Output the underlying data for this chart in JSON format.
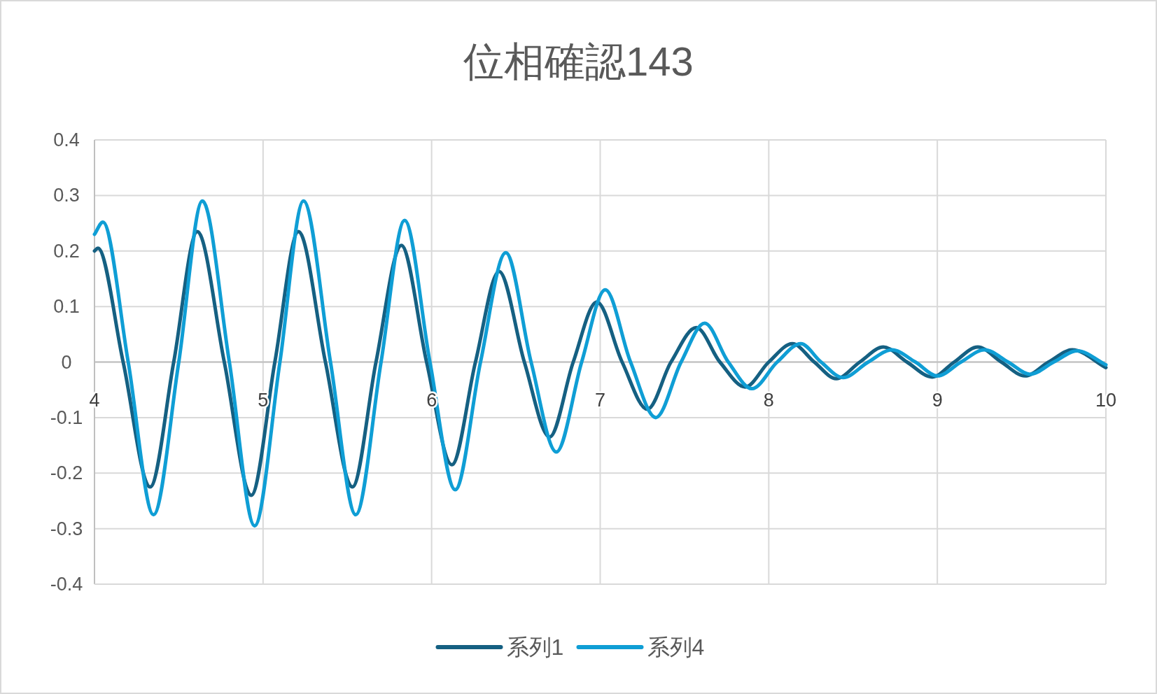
{
  "chart_data": {
    "type": "line",
    "title": "位相確認143",
    "xlim": [
      4,
      10
    ],
    "xticks": [
      4,
      5,
      6,
      7,
      8,
      9,
      10
    ],
    "ylim": [
      -0.4,
      0.4
    ],
    "yticks": [
      -0.4,
      -0.3,
      -0.2,
      -0.1,
      0,
      0.1,
      0.2,
      0.3,
      0.4
    ],
    "grid": true,
    "legend": "bottom",
    "series": [
      {
        "name": "系列1",
        "color": "#156082",
        "x": [
          4.0,
          4.02,
          4.17,
          4.33,
          4.47,
          4.61,
          4.77,
          4.93,
          5.07,
          5.21,
          5.37,
          5.53,
          5.67,
          5.82,
          5.97,
          6.12,
          6.26,
          6.4,
          6.55,
          6.7,
          6.84,
          6.98,
          7.13,
          7.28,
          7.42,
          7.57,
          7.71,
          7.86,
          8.0,
          8.14,
          8.27,
          8.4,
          8.54,
          8.68,
          8.82,
          8.97,
          9.1,
          9.24,
          9.38,
          9.52,
          9.66,
          9.8,
          10.0
        ],
        "values": [
          0.2,
          0.205,
          0,
          -0.225,
          0,
          0.235,
          0,
          -0.24,
          0,
          0.235,
          0,
          -0.225,
          0,
          0.21,
          0,
          -0.185,
          0,
          0.163,
          0,
          -0.135,
          0,
          0.108,
          0,
          -0.085,
          0,
          0.062,
          0,
          -0.045,
          0,
          0.033,
          0,
          -0.03,
          0,
          0.027,
          0,
          -0.027,
          0,
          0.027,
          0,
          -0.025,
          0,
          0.022,
          -0.01
        ]
      },
      {
        "name": "系列4",
        "color": "#0f9ed5",
        "x": [
          4.0,
          4.05,
          4.2,
          4.35,
          4.5,
          4.64,
          4.8,
          4.95,
          5.1,
          5.24,
          5.4,
          5.55,
          5.7,
          5.84,
          5.99,
          6.14,
          6.29,
          6.44,
          6.59,
          6.74,
          6.89,
          7.03,
          7.18,
          7.33,
          7.48,
          7.62,
          7.76,
          7.9,
          8.05,
          8.19,
          8.31,
          8.44,
          8.59,
          8.73,
          8.87,
          9.0,
          9.14,
          9.28,
          9.42,
          9.55,
          9.69,
          9.83,
          10.0
        ],
        "values": [
          0.23,
          0.252,
          0,
          -0.275,
          0,
          0.29,
          0,
          -0.295,
          0,
          0.29,
          0,
          -0.275,
          0,
          0.255,
          0,
          -0.23,
          0,
          0.197,
          0,
          -0.162,
          0,
          0.13,
          0,
          -0.1,
          0,
          0.07,
          0,
          -0.048,
          0,
          0.033,
          0,
          -0.028,
          0,
          0.022,
          0,
          -0.025,
          0,
          0.022,
          0,
          -0.022,
          0,
          0.02,
          -0.005
        ]
      }
    ]
  }
}
